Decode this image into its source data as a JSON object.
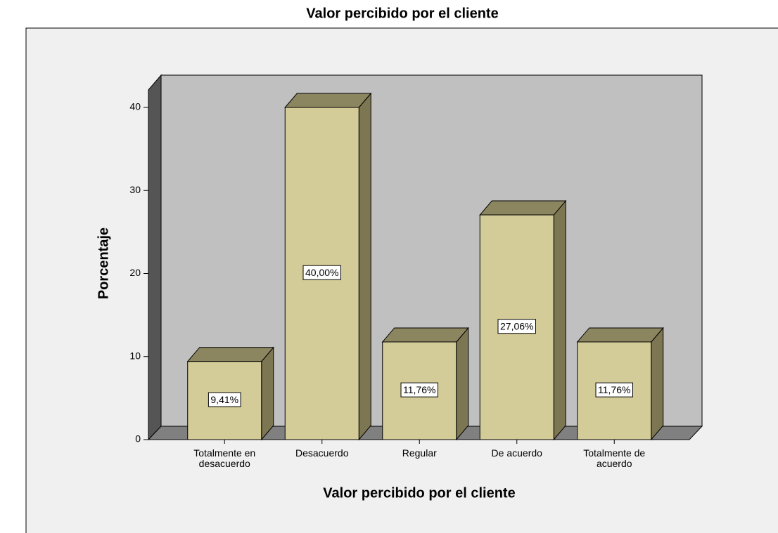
{
  "chart_data": {
    "type": "bar3d",
    "title": "Valor percibido por el cliente",
    "x_label": "Valor percibido por el cliente",
    "y_label": "Porcentaje",
    "categories": [
      "Totalmente en desacuerdo",
      "Desacuerdo",
      "Regular",
      "De acuerdo",
      "Totalmente de acuerdo"
    ],
    "values": [
      9.41,
      40,
      11.76,
      27.06,
      11.76
    ],
    "value_labels": [
      "9,41%",
      "40,00%",
      "11,76%",
      "27,06%",
      "11,76%"
    ],
    "color": "#d3cc98",
    "ylim": [
      0,
      44
    ],
    "yticks": [
      0,
      10,
      20,
      30,
      40
    ]
  }
}
